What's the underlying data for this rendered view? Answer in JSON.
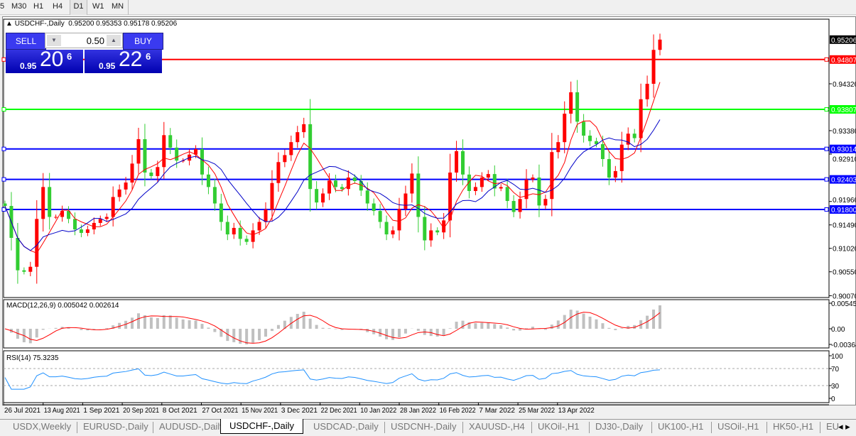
{
  "timeframes": [
    {
      "label": "5",
      "selected": false
    },
    {
      "label": "M30",
      "selected": false
    },
    {
      "label": "H1",
      "selected": false
    },
    {
      "label": "H4",
      "selected": false
    },
    {
      "label": "D1",
      "selected": true
    },
    {
      "label": "W1",
      "selected": false
    },
    {
      "label": "MN",
      "selected": false
    }
  ],
  "chart_header": {
    "symbol": "USDCHF-,Daily",
    "ohlc": "0.95200 0.95353 0.95178 0.95206"
  },
  "trade_panel": {
    "sell_label": "SELL",
    "buy_label": "BUY",
    "lot": "0.50",
    "sell_prefix": "0.95",
    "sell_big": "20",
    "sell_sup": "6",
    "buy_prefix": "0.95",
    "buy_big": "22",
    "buy_sup": "6"
  },
  "colors": {
    "up_candle": "#ff0000",
    "down_candle": "#32cd32",
    "fast_ma": "#ff0000",
    "slow_ma": "#0000c8",
    "resistance": "#ff0000",
    "mid": "#00ff00",
    "support": "#0000ff"
  },
  "chart_data": {
    "type": "candlestick",
    "symbol": "USDCHF-",
    "timeframe": "Daily",
    "closes": [
      0.9187,
      0.9123,
      0.9058,
      0.9055,
      0.9065,
      0.9161,
      0.9225,
      0.9165,
      0.9165,
      0.9177,
      0.9161,
      0.914,
      0.9133,
      0.914,
      0.9153,
      0.9161,
      0.9165,
      0.9205,
      0.922,
      0.9234,
      0.9272,
      0.9321,
      0.9254,
      0.9247,
      0.9265,
      0.9329,
      0.9304,
      0.9278,
      0.9278,
      0.929,
      0.9301,
      0.925,
      0.9225,
      0.9192,
      0.9155,
      0.913,
      0.9143,
      0.9121,
      0.9115,
      0.9138,
      0.9155,
      0.918,
      0.9233,
      0.9275,
      0.9289,
      0.9315,
      0.9335,
      0.9351,
      0.9221,
      0.9194,
      0.9212,
      0.9238,
      0.9225,
      0.9221,
      0.9244,
      0.9237,
      0.9218,
      0.9192,
      0.9177,
      0.9155,
      0.913,
      0.9138,
      0.9181,
      0.9212,
      0.9252,
      0.9165,
      0.9118,
      0.9138,
      0.9134,
      0.9158,
      0.9254,
      0.9297,
      0.925,
      0.9217,
      0.9225,
      0.9244,
      0.9251,
      0.9222,
      0.9225,
      0.9197,
      0.9175,
      0.9201,
      0.924,
      0.9244,
      0.9188,
      0.9201,
      0.9295,
      0.9315,
      0.9372,
      0.9415,
      0.9356,
      0.9328,
      0.9317,
      0.9311,
      0.9281,
      0.9244,
      0.9257,
      0.931,
      0.9332,
      0.9323,
      0.9401,
      0.9432,
      0.95,
      0.95206
    ],
    "x_ticks": [
      "26 Jul 2021",
      "13 Aug 2021",
      "1 Sep 2021",
      "20 Sep 2021",
      "8 Oct 2021",
      "27 Oct 2021",
      "15 Nov 2021",
      "3 Dec 2021",
      "22 Dec 2021",
      "10 Jan 2022",
      "28 Jan 2022",
      "16 Feb 2022",
      "7 Mar 2022",
      "25 Mar 2022",
      "13 Apr 2022"
    ],
    "y_ticks": [
      "0.94320",
      "0.93380",
      "0.92910",
      "0.91960",
      "0.91490",
      "0.91020",
      "0.90550",
      "0.90070"
    ],
    "y_range": [
      0.9007,
      0.953
    ],
    "current_price": "0.95206",
    "hlines": [
      {
        "value": "0.94807",
        "color": "#ff0000"
      },
      {
        "value": "0.93807",
        "color": "#00ff00"
      },
      {
        "value": "0.93014",
        "color": "#0000ff"
      },
      {
        "value": "0.92403",
        "color": "#0000ff"
      },
      {
        "value": "0.91800",
        "color": "#0000ff"
      }
    ],
    "macd": {
      "label": "MACD(12,26,9) 0.005042 0.002614",
      "ticks": [
        "0.00545",
        "0.00",
        "-0.00364"
      ]
    },
    "rsi": {
      "label": "RSI(14) 75.3235",
      "ticks": [
        "100",
        "70",
        "30",
        "0"
      ],
      "levels": [
        70,
        30
      ]
    }
  },
  "tabs": [
    {
      "label": "USDX,Weekly"
    },
    {
      "label": "EURUSD-,Daily"
    },
    {
      "label": "AUDUSD-,Daily"
    },
    {
      "label": "USDCHF-,Daily",
      "selected": true
    },
    {
      "label": "USDCAD-,Daily"
    },
    {
      "label": "USDCNH-,Daily"
    },
    {
      "label": "XAUUSD-,H4"
    },
    {
      "label": "UKOil-,H1"
    },
    {
      "label": "DJ30-,Daily"
    },
    {
      "label": "UK100-,H1"
    },
    {
      "label": "USOil-,H1"
    },
    {
      "label": "HK50-,H1"
    },
    {
      "label": "EU"
    }
  ]
}
